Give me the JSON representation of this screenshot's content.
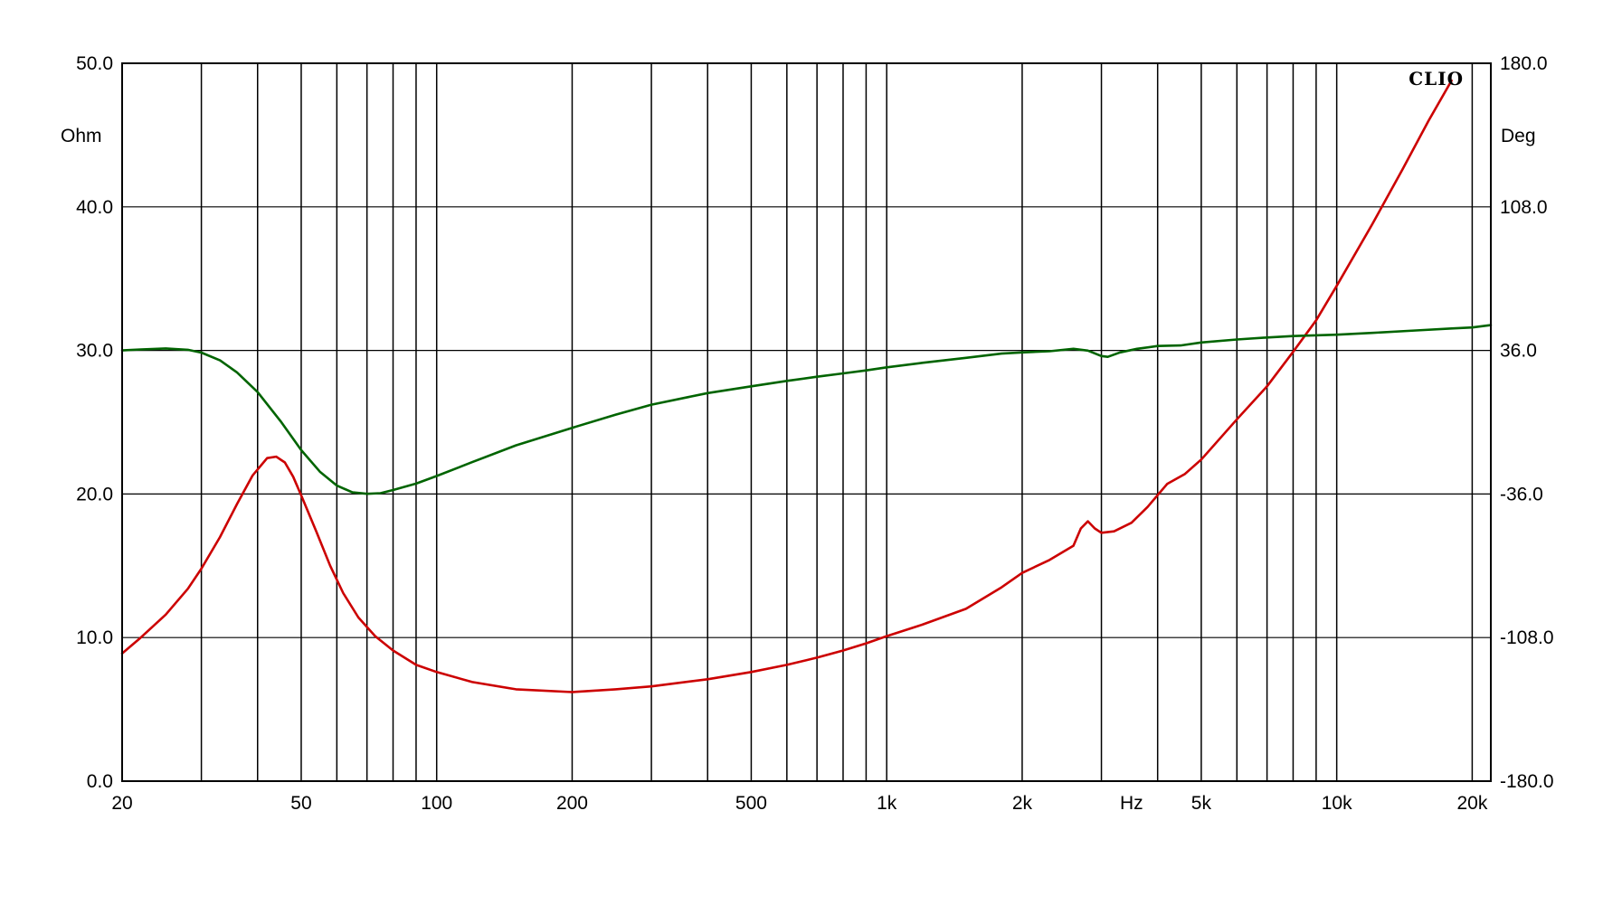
{
  "chart_data": {
    "type": "line",
    "brand": "CLIO",
    "xlabel": "Hz",
    "x_scale": "log",
    "xlim": [
      20,
      22000
    ],
    "x_ticks": [
      {
        "value": 20,
        "label": "20"
      },
      {
        "value": 50,
        "label": "50"
      },
      {
        "value": 100,
        "label": "100"
      },
      {
        "value": 200,
        "label": "200"
      },
      {
        "value": 500,
        "label": "500"
      },
      {
        "value": 1000,
        "label": "1k"
      },
      {
        "value": 2000,
        "label": "2k"
      },
      {
        "value": 5000,
        "label": "5k"
      },
      {
        "value": 10000,
        "label": "10k"
      },
      {
        "value": 20000,
        "label": "20k"
      }
    ],
    "x_unit_label_at": 3500,
    "y_left": {
      "unit": "Ohm",
      "lim": [
        0,
        50
      ],
      "tick_labels": [
        "0.0",
        "10.0",
        "20.0",
        "30.0",
        "40.0",
        "50.0"
      ],
      "tick_values": [
        0,
        10,
        20,
        30,
        40,
        50
      ]
    },
    "y_right": {
      "unit": "Deg",
      "lim": [
        -180,
        180
      ],
      "tick_labels": [
        "-180.0",
        "-108.0",
        "-36.0",
        "36.0",
        "108.0",
        "180.0"
      ],
      "tick_values": [
        -180,
        -108,
        -36,
        36,
        108,
        180
      ]
    },
    "grid": true,
    "series": [
      {
        "axis": "left",
        "color": "#cc0000",
        "points": [
          [
            20,
            8.9
          ],
          [
            22,
            10.0
          ],
          [
            25,
            11.6
          ],
          [
            28,
            13.4
          ],
          [
            30,
            14.8
          ],
          [
            33,
            17.0
          ],
          [
            36,
            19.3
          ],
          [
            39,
            21.3
          ],
          [
            42,
            22.5
          ],
          [
            44,
            22.6
          ],
          [
            46,
            22.2
          ],
          [
            48,
            21.2
          ],
          [
            50,
            19.9
          ],
          [
            54,
            17.4
          ],
          [
            58,
            15.0
          ],
          [
            62,
            13.1
          ],
          [
            67,
            11.4
          ],
          [
            73,
            10.1
          ],
          [
            80,
            9.1
          ],
          [
            90,
            8.1
          ],
          [
            100,
            7.6
          ],
          [
            120,
            6.9
          ],
          [
            150,
            6.4
          ],
          [
            200,
            6.2
          ],
          [
            250,
            6.4
          ],
          [
            300,
            6.6
          ],
          [
            400,
            7.1
          ],
          [
            500,
            7.6
          ],
          [
            600,
            8.1
          ],
          [
            700,
            8.6
          ],
          [
            800,
            9.1
          ],
          [
            900,
            9.6
          ],
          [
            1000,
            10.1
          ],
          [
            1200,
            10.9
          ],
          [
            1500,
            12.0
          ],
          [
            1800,
            13.5
          ],
          [
            2000,
            14.5
          ],
          [
            2300,
            15.4
          ],
          [
            2600,
            16.4
          ],
          [
            2700,
            17.6
          ],
          [
            2800,
            18.1
          ],
          [
            2900,
            17.6
          ],
          [
            3000,
            17.3
          ],
          [
            3200,
            17.4
          ],
          [
            3500,
            18.0
          ],
          [
            3800,
            19.1
          ],
          [
            4200,
            20.7
          ],
          [
            4600,
            21.4
          ],
          [
            5000,
            22.4
          ],
          [
            6000,
            25.2
          ],
          [
            7000,
            27.5
          ],
          [
            8000,
            29.9
          ],
          [
            9000,
            32.1
          ],
          [
            10000,
            34.5
          ],
          [
            12000,
            38.8
          ],
          [
            14000,
            42.6
          ],
          [
            16000,
            46.0
          ],
          [
            18000,
            48.8
          ]
        ]
      },
      {
        "axis": "right",
        "color": "#006400",
        "points": [
          [
            20,
            36.0
          ],
          [
            22,
            36.5
          ],
          [
            25,
            37.0
          ],
          [
            28,
            36.3
          ],
          [
            30,
            34.9
          ],
          [
            33,
            31.0
          ],
          [
            36,
            25.0
          ],
          [
            40,
            15.1
          ],
          [
            45,
            0.5
          ],
          [
            50,
            -14.0
          ],
          [
            55,
            -24.8
          ],
          [
            60,
            -31.8
          ],
          [
            65,
            -35.2
          ],
          [
            70,
            -35.9
          ],
          [
            75,
            -35.6
          ],
          [
            80,
            -34.0
          ],
          [
            90,
            -30.8
          ],
          [
            100,
            -27.0
          ],
          [
            120,
            -20.0
          ],
          [
            150,
            -11.6
          ],
          [
            200,
            -2.8
          ],
          [
            250,
            3.8
          ],
          [
            300,
            8.8
          ],
          [
            400,
            14.6
          ],
          [
            500,
            18.0
          ],
          [
            600,
            20.7
          ],
          [
            700,
            22.8
          ],
          [
            800,
            24.5
          ],
          [
            900,
            26.0
          ],
          [
            1000,
            27.5
          ],
          [
            1200,
            29.8
          ],
          [
            1500,
            32.3
          ],
          [
            1800,
            34.4
          ],
          [
            2000,
            35.0
          ],
          [
            2300,
            35.6
          ],
          [
            2600,
            36.8
          ],
          [
            2800,
            35.9
          ],
          [
            3000,
            33.2
          ],
          [
            3100,
            32.8
          ],
          [
            3300,
            35.0
          ],
          [
            3600,
            36.8
          ],
          [
            4000,
            38.2
          ],
          [
            4500,
            38.5
          ],
          [
            5000,
            40.0
          ],
          [
            6000,
            41.5
          ],
          [
            7000,
            42.5
          ],
          [
            8000,
            43.2
          ],
          [
            10000,
            43.9
          ],
          [
            12000,
            44.8
          ],
          [
            15000,
            46.0
          ],
          [
            18000,
            47.0
          ],
          [
            20000,
            47.5
          ],
          [
            22000,
            48.7
          ]
        ]
      }
    ]
  }
}
